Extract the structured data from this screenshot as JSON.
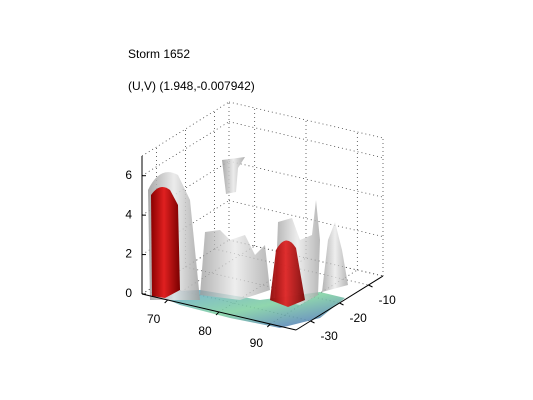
{
  "chart_data": {
    "type": "isosurface3d",
    "title": "Storm 1652",
    "subtitle": "(U,V) (1.948,-0.007942)",
    "xlim": [
      65,
      95
    ],
    "xticks": [
      70,
      80,
      90
    ],
    "ylim": [
      -35,
      -5
    ],
    "yticks": [
      -30,
      -20,
      -10
    ],
    "zlim": [
      0,
      7
    ],
    "zticks": [
      0,
      2,
      4,
      6
    ],
    "grid": true
  }
}
